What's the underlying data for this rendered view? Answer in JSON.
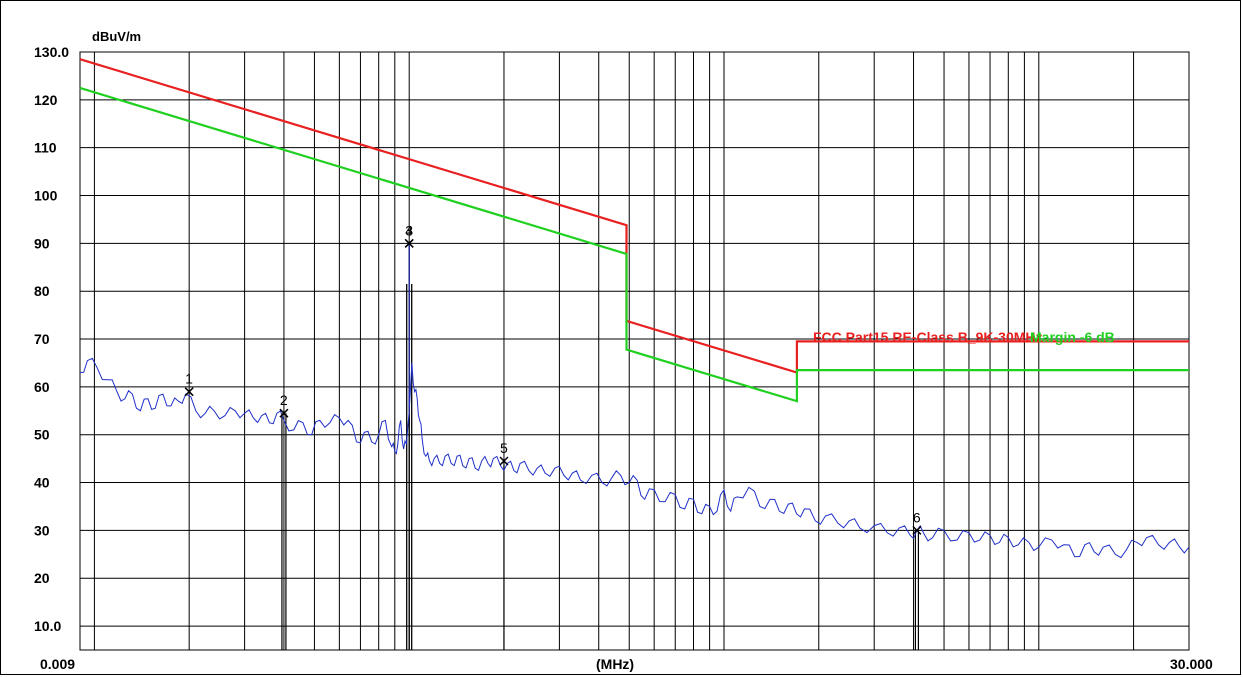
{
  "chart_data": {
    "type": "line",
    "unit_label": "dBuV/m",
    "xlabel": "(MHz)",
    "x_start_label": "0.009",
    "x_end_label": "30.000",
    "xlim": [
      0.009,
      30.0
    ],
    "x_scale": "log",
    "ylim": [
      5,
      130
    ],
    "y_tick_labels": [
      {
        "v": 130,
        "t": "130.0"
      },
      {
        "v": 120,
        "t": "120"
      },
      {
        "v": 110,
        "t": "110"
      },
      {
        "v": 100,
        "t": "100"
      },
      {
        "v": 90,
        "t": "90"
      },
      {
        "v": 80,
        "t": "80"
      },
      {
        "v": 70,
        "t": "70"
      },
      {
        "v": 60,
        "t": "60"
      },
      {
        "v": 50,
        "t": "50"
      },
      {
        "v": 40,
        "t": "40"
      },
      {
        "v": 30,
        "t": "30"
      },
      {
        "v": 20,
        "t": "20"
      },
      {
        "v": 10,
        "t": "10.0"
      }
    ],
    "grid": true,
    "series": [
      {
        "name": "FCC Part15 RE-Class B_9K-30MHz",
        "color": "#e82020",
        "x": [
          0.009,
          0.49,
          0.49,
          1.705,
          1.705,
          30.0
        ],
        "y": [
          128.5,
          93.8,
          73.8,
          63.0,
          69.5,
          69.5
        ]
      },
      {
        "name": "Margin -6 dB",
        "color": "#20d020",
        "x": [
          0.009,
          0.49,
          0.49,
          1.705,
          1.705,
          30.0
        ],
        "y": [
          122.5,
          87.8,
          67.8,
          57.0,
          63.5,
          63.5
        ]
      },
      {
        "name": "",
        "color": "#2030c8",
        "x": [
          0.009,
          0.0095,
          0.0102,
          0.011,
          0.0118,
          0.0125,
          0.0132,
          0.014,
          0.0148,
          0.0156,
          0.0165,
          0.0175,
          0.0185,
          0.0195,
          0.021,
          0.0225,
          0.024,
          0.026,
          0.028,
          0.03,
          0.032,
          0.034,
          0.036,
          0.038,
          0.04,
          0.043,
          0.046,
          0.049,
          0.052,
          0.056,
          0.06,
          0.064,
          0.068,
          0.072,
          0.076,
          0.08,
          0.084,
          0.088,
          0.09,
          0.092,
          0.094,
          0.096,
          0.098,
          0.1,
          0.102,
          0.104,
          0.106,
          0.108,
          0.11,
          0.113,
          0.116,
          0.12,
          0.125,
          0.13,
          0.136,
          0.142,
          0.148,
          0.155,
          0.162,
          0.17,
          0.178,
          0.185,
          0.195,
          0.205,
          0.215,
          0.225,
          0.24,
          0.255,
          0.27,
          0.29,
          0.31,
          0.33,
          0.35,
          0.38,
          0.41,
          0.44,
          0.47,
          0.5,
          0.53,
          0.56,
          0.6,
          0.65,
          0.7,
          0.75,
          0.8,
          0.85,
          0.9,
          0.95,
          1.0,
          1.05,
          1.1,
          1.2,
          1.3,
          1.4,
          1.5,
          1.6,
          1.7,
          1.8,
          1.95,
          2.1,
          2.3,
          2.5,
          2.7,
          3.0,
          3.3,
          3.6,
          3.9,
          4.1,
          4.3,
          4.6,
          5.0,
          5.5,
          6.0,
          6.5,
          7.0,
          7.5,
          8.0,
          8.6,
          9.3,
          10.0,
          11.0,
          12.0,
          13.0,
          14.0,
          15.0,
          16.0,
          17.5,
          19.0,
          20.5,
          22.0,
          24.0,
          26.0,
          28.0,
          30.0
        ],
        "y": [
          63.0,
          65.5,
          64.0,
          61.5,
          59.0,
          57.5,
          58.5,
          55.0,
          57.5,
          55.5,
          58.5,
          56.0,
          57.0,
          58.5,
          55.0,
          54.5,
          55.0,
          54.0,
          55.0,
          54.5,
          53.5,
          54.0,
          52.5,
          54.5,
          53.0,
          51.0,
          52.5,
          50.0,
          53.0,
          52.5,
          53.5,
          53.0,
          48.5,
          50.5,
          48.5,
          50.0,
          53.0,
          47.5,
          46.5,
          48.0,
          53.0,
          47.0,
          48.0,
          55.0,
          65.0,
          59.0,
          57.5,
          53.0,
          49.0,
          45.5,
          44.5,
          45.0,
          44.0,
          45.5,
          44.0,
          45.5,
          43.5,
          45.0,
          43.0,
          44.5,
          44.0,
          45.0,
          43.5,
          44.0,
          42.5,
          44.0,
          42.5,
          43.0,
          42.0,
          43.0,
          41.5,
          42.0,
          40.5,
          41.5,
          40.0,
          41.0,
          41.5,
          40.0,
          40.5,
          36.5,
          38.5,
          36.0,
          37.5,
          34.5,
          36.5,
          33.5,
          35.0,
          34.0,
          38.5,
          34.0,
          37.0,
          39.0,
          35.0,
          36.5,
          34.0,
          35.5,
          33.5,
          34.5,
          32.0,
          33.0,
          31.5,
          32.0,
          30.5,
          31.0,
          29.5,
          30.5,
          29.0,
          30.0,
          29.5,
          28.5,
          30.0,
          28.0,
          29.5,
          28.0,
          29.0,
          27.5,
          28.5,
          27.0,
          27.5,
          26.5,
          28.0,
          27.0,
          24.5,
          27.0,
          25.5,
          26.5,
          25.0,
          26.0,
          27.5,
          28.5,
          27.0,
          27.5,
          26.5,
          26.5
        ]
      }
    ],
    "markers": [
      {
        "label": "1",
        "x": 0.02,
        "y": 59.0
      },
      {
        "label": "2",
        "x": 0.04,
        "y": 54.5
      },
      {
        "label": "3",
        "x": 0.1,
        "y": 90.0
      },
      {
        "label": "4",
        "x": 0.1,
        "y": 90.0
      },
      {
        "label": "5",
        "x": 0.2,
        "y": 44.5
      },
      {
        "label": "6",
        "x": 4.1,
        "y": 30.0
      }
    ],
    "peak_x": 0.1,
    "peak_lines_y": [
      90.0,
      81.5
    ],
    "marker_line_y": [
      54.5,
      54.5,
      44.5,
      30.0
    ]
  }
}
